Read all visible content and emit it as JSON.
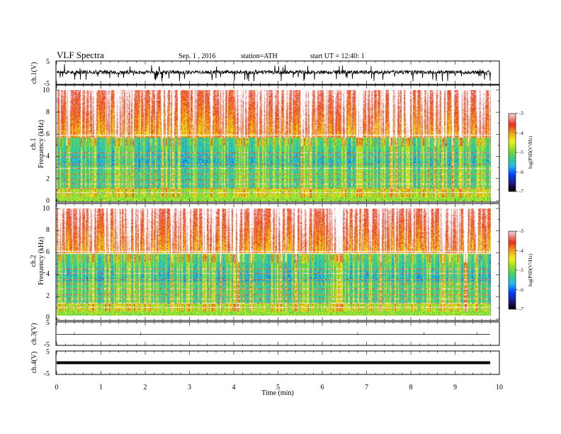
{
  "header": {
    "title": "VLF Spectra",
    "date": "Sep. 1 , 2016",
    "station": "station=ATH",
    "start_ut": "start UT = 12:40: 1"
  },
  "colors": {
    "colormap": [
      "#000000",
      "#1c1c8a",
      "#0044ff",
      "#22b8f0",
      "#3ad07a",
      "#8edc2a",
      "#f2f218",
      "#f0a020",
      "#e83018",
      "#f0b0b0",
      "#ffffff"
    ]
  },
  "chart_data": [
    {
      "type": "line",
      "panel": "ch1-waveform",
      "ylabel": "ch.1(V)",
      "ylim": [
        -5,
        5
      ],
      "yticks": [
        "5",
        "-5"
      ],
      "xlim": [
        0,
        10
      ],
      "baseline": 0,
      "description_values": {
        "mean_level_V": 0.2,
        "spike_min_V": -3.8,
        "spike_max_V": 4.5
      }
    },
    {
      "type": "heatmap",
      "panel": "ch1-spectrogram",
      "ylabel_line1": "ch.1",
      "ylabel_line2": "Frequency (kHz)",
      "ylim": [
        0,
        10
      ],
      "yticks": [
        "0",
        "2",
        "4",
        "6",
        "8",
        "10"
      ],
      "xlim": [
        0,
        9.8
      ],
      "colorbar": {
        "label": "log(PSD(V²/Hz)",
        "range": [
          -7,
          -3
        ],
        "ticks": [
          "-3",
          "-4",
          "-5",
          "-6",
          "-7"
        ]
      }
    },
    {
      "type": "heatmap",
      "panel": "ch2-spectrogram",
      "ylabel_line1": "ch.2",
      "ylabel_line2": "Frequency (kHz)",
      "ylim": [
        0,
        10
      ],
      "yticks": [
        "0",
        "2",
        "4",
        "6",
        "8",
        "10"
      ],
      "xlim": [
        0,
        9.8
      ],
      "colorbar": {
        "label": "log(PSD(V²/Hz)",
        "range": [
          -7,
          -3
        ],
        "ticks": [
          "-3",
          "-4",
          "-5",
          "-6",
          "-7"
        ]
      }
    },
    {
      "type": "line",
      "panel": "ch3-waveform",
      "ylabel": "ch.3(V)",
      "ylim": [
        -5,
        5
      ],
      "yticks": [
        "5",
        "-5"
      ],
      "xlim": [
        0,
        10
      ],
      "level_V": 0
    },
    {
      "type": "line",
      "panel": "ch4-waveform",
      "ylabel": "ch.4(V)",
      "ylim": [
        -5,
        5
      ],
      "yticks": [
        "5",
        "-5"
      ],
      "xlim": [
        0,
        10
      ],
      "level_V": 0,
      "xlabel": "Time (min)",
      "xticks": [
        "0",
        "1",
        "2",
        "3",
        "4",
        "5",
        "6",
        "7",
        "8",
        "9",
        "10"
      ]
    }
  ]
}
